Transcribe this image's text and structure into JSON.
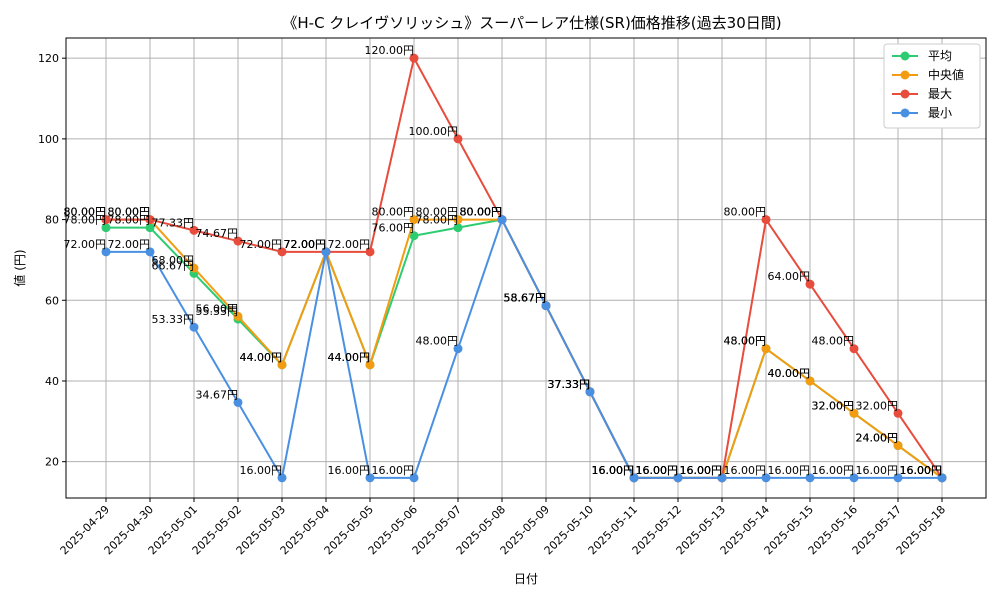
{
  "chart_data": {
    "type": "line",
    "title": "《H-C クレイヴソリッシュ》スーパーレア仕様(SR)価格推移(過去30日間)",
    "xlabel": "日付",
    "ylabel": "値 (円)",
    "ylim": [
      11,
      125
    ],
    "yticks": [
      20,
      40,
      60,
      80,
      100,
      120
    ],
    "grid": true,
    "legend_position": "top-right",
    "value_suffix": "円",
    "categories": [
      "2025-04-29",
      "2025-04-30",
      "2025-05-01",
      "2025-05-02",
      "2025-05-03",
      "2025-05-04",
      "2025-05-05",
      "2025-05-06",
      "2025-05-07",
      "2025-05-08",
      "2025-05-09",
      "2025-05-10",
      "2025-05-11",
      "2025-05-12",
      "2025-05-13",
      "2025-05-14",
      "2025-05-15",
      "2025-05-16",
      "2025-05-17",
      "2025-05-18"
    ],
    "series": [
      {
        "name": "平均",
        "color": "#2ecc71",
        "values": [
          78.0,
          78.0,
          66.67,
          55.33,
          44.0,
          72.0,
          44.0,
          76.0,
          78.0,
          80.0,
          58.67,
          37.33,
          16.0,
          16.0,
          16.0,
          48.0,
          40.0,
          32.0,
          24.0,
          16.0
        ]
      },
      {
        "name": "中央値",
        "color": "#f39c12",
        "values": [
          80.0,
          80.0,
          68.0,
          56.0,
          44.0,
          72.0,
          44.0,
          80.0,
          80.0,
          80.0,
          58.67,
          37.33,
          16.0,
          16.0,
          16.0,
          48.0,
          40.0,
          32.0,
          24.0,
          16.0
        ]
      },
      {
        "name": "最大",
        "color": "#e74c3c",
        "values": [
          80.0,
          80.0,
          77.33,
          74.67,
          72.0,
          72.0,
          72.0,
          120.0,
          100.0,
          80.0,
          58.67,
          37.33,
          16.0,
          16.0,
          16.0,
          80.0,
          64.0,
          48.0,
          32.0,
          16.0
        ]
      },
      {
        "name": "最小",
        "color": "#4a90e2",
        "values": [
          72.0,
          72.0,
          53.33,
          34.67,
          16.0,
          72.0,
          16.0,
          16.0,
          48.0,
          80.0,
          58.67,
          37.33,
          16.0,
          16.0,
          16.0,
          16.0,
          16.0,
          16.0,
          16.0,
          16.0
        ]
      }
    ]
  }
}
